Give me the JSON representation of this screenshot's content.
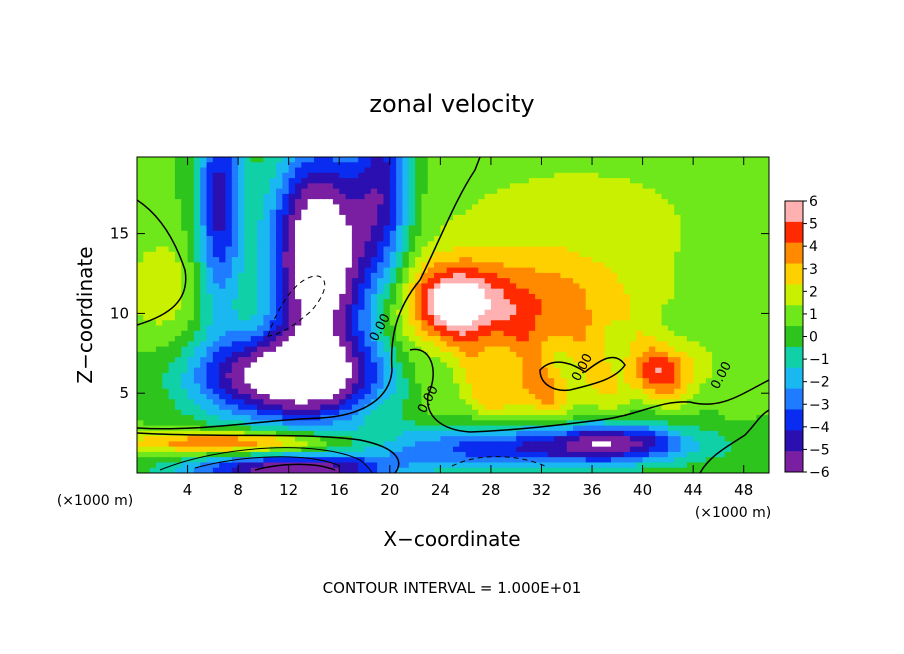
{
  "chart_data": {
    "type": "heatmap",
    "title": "zonal velocity",
    "xlabel": "X−coordinate",
    "ylabel": "Z−coordinate",
    "x_unit_label": "(×1000 m)",
    "footer": "CONTOUR INTERVAL = 1.000E+01",
    "xlim": [
      0,
      50
    ],
    "ylim": [
      0,
      19.8
    ],
    "x_ticks": [
      4,
      8,
      12,
      16,
      20,
      24,
      28,
      32,
      36,
      40,
      44,
      48
    ],
    "y_ticks": [
      5,
      10,
      15
    ],
    "colorbar": {
      "range": [
        -6,
        6
      ],
      "ticks": [
        6,
        5,
        4,
        3,
        2,
        1,
        0,
        -1,
        -2,
        -3,
        -4,
        -5,
        -6
      ],
      "tick_labels": [
        "6",
        "5",
        "4",
        "3",
        "2",
        "1",
        "0",
        "−1",
        "−2",
        "−3",
        "−4",
        "−5",
        "−6"
      ]
    },
    "contour_labels": [
      {
        "text": "0.00",
        "x": 19.5,
        "y": 9.0
      },
      {
        "text": "0.00",
        "x": 23.3,
        "y": 4.5
      },
      {
        "text": "0.00",
        "x": 35.5,
        "y": 6.5
      },
      {
        "text": "0.00",
        "x": 46.5,
        "y": 6.0
      }
    ],
    "features": [
      {
        "label": "negative jet core",
        "x": 14.5,
        "y": 13,
        "rx": 4.0,
        "ry": 6.5,
        "value": -9
      },
      {
        "label": "positive maximum",
        "x": 25,
        "y": 10.5,
        "rx": 3.2,
        "ry": 2.2,
        "value": 7.5
      },
      {
        "label": "positive maximum",
        "x": 41.5,
        "y": 6.2,
        "rx": 2.8,
        "ry": 1.6,
        "value": 7
      },
      {
        "label": "low-level positive band",
        "x": 8,
        "y": 2.0,
        "value": 4.5
      }
    ]
  }
}
